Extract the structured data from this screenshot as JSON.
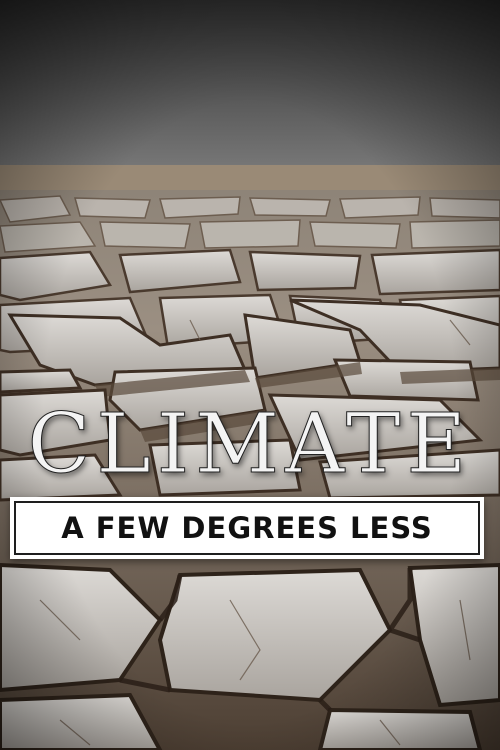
{
  "poster": {
    "title": "CLIMATE",
    "subtitle": "A FEW DEGREES LESS"
  },
  "palette": {
    "sky_top": "#2e2e2e",
    "sky_bottom": "#777777",
    "horizon": "#9a8a76",
    "mud_light": "#cfccc8",
    "mud_shadow": "#5a4a3c",
    "crack": "#4a3a2e",
    "title_color": "#f4f4f4",
    "box_bg": "#ffffff",
    "box_border": "#1e1e1e",
    "subtitle_color": "#111111"
  },
  "scene": {
    "description_icon": "cracked-earth-icon"
  }
}
